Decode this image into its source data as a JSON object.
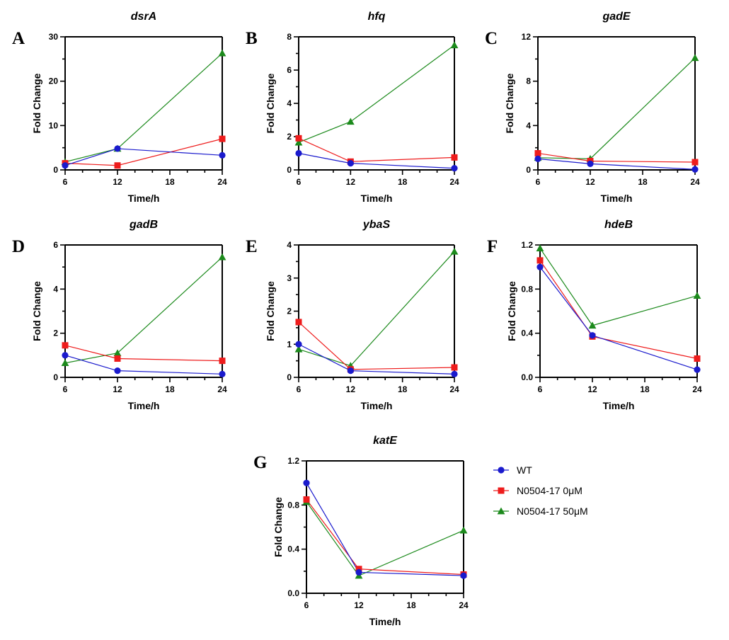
{
  "chart_data": {
    "type": "line",
    "legend_position": "right of panel G",
    "legend": [
      {
        "name": "WT",
        "color": "#1a1acd",
        "marker": "circle"
      },
      {
        "name": "N0504-17 0μM",
        "color": "#ee1c1c",
        "marker": "square"
      },
      {
        "name": "N0504-17 50μM",
        "color": "#1c8a1c",
        "marker": "triangle"
      }
    ],
    "panels": [
      {
        "letter": "A",
        "title": "dsrA",
        "xlabel": "Time/h",
        "ylabel": "Fold Change",
        "x": [
          6,
          12,
          24
        ],
        "xticks": [
          "6",
          "12",
          "18",
          "24"
        ],
        "xlim": [
          6,
          24
        ],
        "ylim": [
          0,
          30
        ],
        "yticks": [
          "0",
          "10",
          "20",
          "30"
        ],
        "yminor": 5,
        "series": [
          {
            "name": "WT",
            "values": [
              1.0,
              4.8,
              3.3
            ]
          },
          {
            "name": "N0504-17 0μM",
            "values": [
              1.5,
              1.0,
              7.0
            ]
          },
          {
            "name": "N0504-17 50μM",
            "values": [
              1.8,
              4.8,
              26.3
            ]
          }
        ]
      },
      {
        "letter": "B",
        "title": "hfq",
        "xlabel": "Time/h",
        "ylabel": "Fold Change",
        "x": [
          6,
          12,
          24
        ],
        "xticks": [
          "6",
          "12",
          "18",
          "24"
        ],
        "xlim": [
          6,
          24
        ],
        "ylim": [
          0,
          8
        ],
        "yticks": [
          "0",
          "2",
          "4",
          "6",
          "8"
        ],
        "yminor": 1,
        "series": [
          {
            "name": "WT",
            "values": [
              1.0,
              0.4,
              0.1
            ]
          },
          {
            "name": "N0504-17 0μM",
            "values": [
              1.9,
              0.5,
              0.75
            ]
          },
          {
            "name": "N0504-17 50μM",
            "values": [
              1.65,
              2.9,
              7.5
            ]
          }
        ]
      },
      {
        "letter": "C",
        "title": "gadE",
        "xlabel": "Time/h",
        "ylabel": "Fold Change",
        "x": [
          6,
          12,
          24
        ],
        "xticks": [
          "6",
          "12",
          "18",
          "24"
        ],
        "xlim": [
          6,
          24
        ],
        "ylim": [
          0,
          12
        ],
        "yticks": [
          "0",
          "4",
          "8",
          "12"
        ],
        "yminor": 2,
        "series": [
          {
            "name": "WT",
            "values": [
              1.0,
              0.55,
              0.05
            ]
          },
          {
            "name": "N0504-17 0μM",
            "values": [
              1.5,
              0.8,
              0.7
            ]
          },
          {
            "name": "N0504-17 50μM",
            "values": [
              1.1,
              1.0,
              10.1
            ]
          }
        ]
      },
      {
        "letter": "D",
        "title": "gadB",
        "xlabel": "Time/h",
        "ylabel": "Fold Change",
        "x": [
          6,
          12,
          24
        ],
        "xticks": [
          "6",
          "12",
          "18",
          "24"
        ],
        "xlim": [
          6,
          24
        ],
        "ylim": [
          0,
          6
        ],
        "yticks": [
          "0",
          "2",
          "4",
          "6"
        ],
        "yminor": 1,
        "series": [
          {
            "name": "WT",
            "values": [
              1.0,
              0.3,
              0.15
            ]
          },
          {
            "name": "N0504-17 0μM",
            "values": [
              1.45,
              0.85,
              0.75
            ]
          },
          {
            "name": "N0504-17 50μM",
            "values": [
              0.65,
              1.1,
              5.45
            ]
          }
        ]
      },
      {
        "letter": "E",
        "title": "ybaS",
        "xlabel": "Time/h",
        "ylabel": "Fold Change",
        "x": [
          6,
          12,
          24
        ],
        "xticks": [
          "6",
          "12",
          "18",
          "24"
        ],
        "xlim": [
          6,
          24
        ],
        "ylim": [
          0,
          4
        ],
        "yticks": [
          "0",
          "1",
          "2",
          "3",
          "4"
        ],
        "yminor": 0.5,
        "series": [
          {
            "name": "WT",
            "values": [
              1.0,
              0.2,
              0.1
            ]
          },
          {
            "name": "N0504-17 0μM",
            "values": [
              1.67,
              0.24,
              0.3
            ]
          },
          {
            "name": "N0504-17 50μM",
            "values": [
              0.85,
              0.35,
              3.8
            ]
          }
        ]
      },
      {
        "letter": "F",
        "title": "hdeB",
        "xlabel": "Time/h",
        "ylabel": "Fold Change",
        "x": [
          6,
          12,
          24
        ],
        "xticks": [
          "6",
          "12",
          "18",
          "24"
        ],
        "xlim": [
          6,
          24
        ],
        "ylim": [
          0,
          1.2
        ],
        "yticks": [
          "0.0",
          "0.4",
          "0.8",
          "1.2"
        ],
        "yminor": 0.2,
        "series": [
          {
            "name": "WT",
            "values": [
              1.0,
              0.38,
              0.07
            ]
          },
          {
            "name": "N0504-17 0μM",
            "values": [
              1.06,
              0.37,
              0.17
            ]
          },
          {
            "name": "N0504-17 50μM",
            "values": [
              1.17,
              0.47,
              0.74
            ]
          }
        ]
      },
      {
        "letter": "G",
        "title": "katE",
        "xlabel": "Time/h",
        "ylabel": "Fold Change",
        "x": [
          6,
          12,
          24
        ],
        "xticks": [
          "6",
          "12",
          "18",
          "24"
        ],
        "xlim": [
          6,
          24
        ],
        "ylim": [
          0,
          1.2
        ],
        "yticks": [
          "0.0",
          "0.4",
          "0.8",
          "1.2"
        ],
        "yminor": 0.2,
        "series": [
          {
            "name": "WT",
            "values": [
              1.0,
              0.19,
              0.16
            ]
          },
          {
            "name": "N0504-17 0μM",
            "values": [
              0.85,
              0.22,
              0.17
            ]
          },
          {
            "name": "N0504-17 50μM",
            "values": [
              0.83,
              0.16,
              0.57
            ]
          }
        ]
      }
    ]
  }
}
